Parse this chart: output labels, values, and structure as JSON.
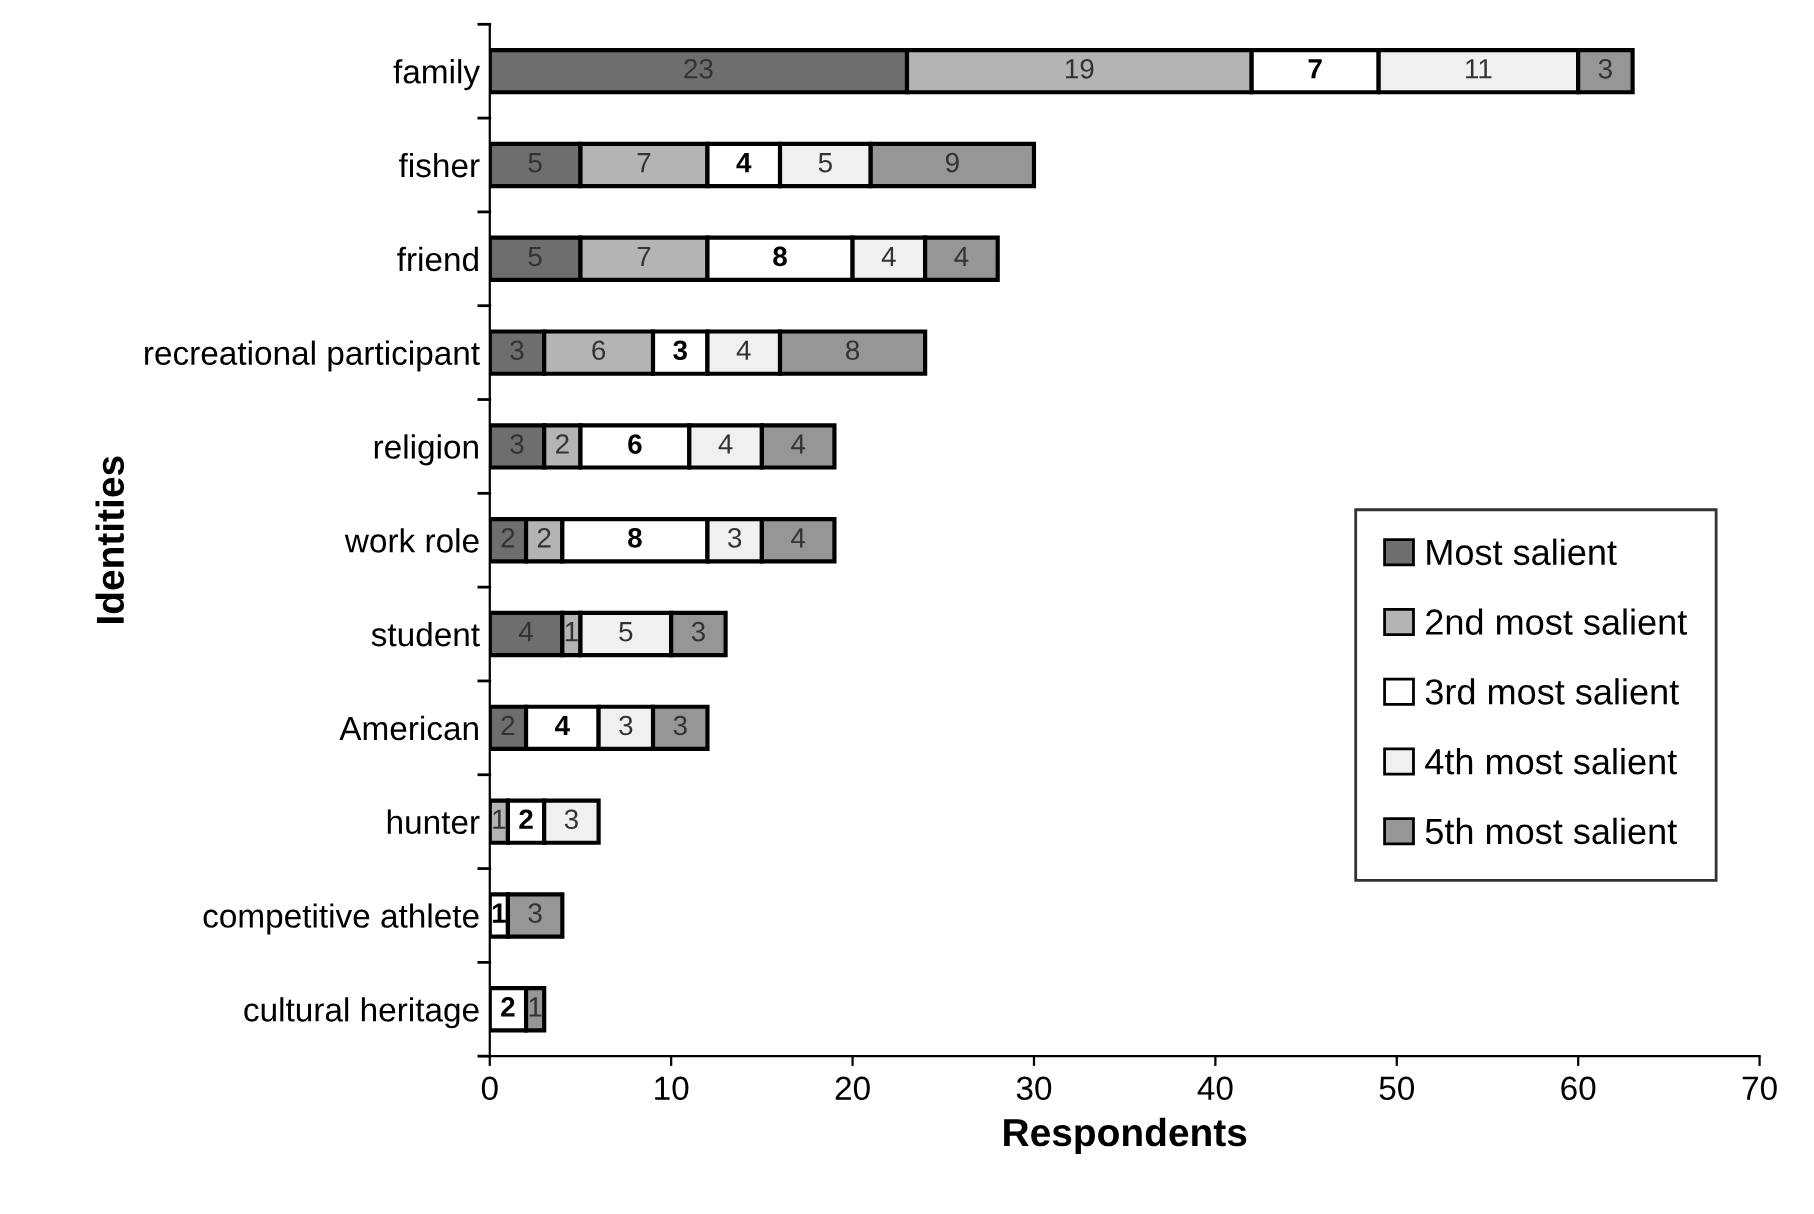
{
  "chart_data": {
    "type": "bar",
    "orientation": "horizontal",
    "stacked": true,
    "xlabel": "Respondents",
    "ylabel": "Identities",
    "categories": [
      "family",
      "fisher",
      "friend",
      "recreational participant",
      "religion",
      "work role",
      "student",
      "American",
      "hunter",
      "competitive athlete",
      "cultural heritage"
    ],
    "series": [
      {
        "name": "Most salient",
        "color": "#6e6e6e",
        "values": [
          23,
          5,
          5,
          3,
          3,
          2,
          4,
          2,
          null,
          null,
          null
        ]
      },
      {
        "name": "2nd most salient",
        "color": "#b4b4b4",
        "values": [
          19,
          7,
          7,
          6,
          2,
          2,
          1,
          null,
          1,
          null,
          null
        ]
      },
      {
        "name": "3rd most salient",
        "color": "#ffffff",
        "values": [
          7,
          4,
          8,
          3,
          6,
          8,
          null,
          4,
          2,
          1,
          2
        ]
      },
      {
        "name": "4th most salient",
        "color": "#f0f0f0",
        "values": [
          11,
          5,
          4,
          4,
          4,
          3,
          5,
          3,
          3,
          null,
          null
        ]
      },
      {
        "name": "5th most salient",
        "color": "#969696",
        "values": [
          3,
          9,
          4,
          8,
          4,
          4,
          3,
          3,
          null,
          3,
          1
        ]
      }
    ],
    "xlim": [
      0,
      70
    ],
    "xticks": [
      0,
      10,
      20,
      30,
      40,
      50,
      60,
      70
    ],
    "data_labels": true,
    "legend": "right",
    "grid": false
  }
}
